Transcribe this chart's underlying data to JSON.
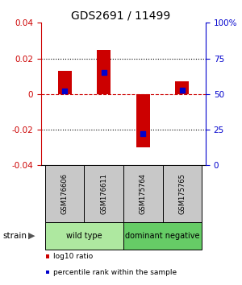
{
  "title": "GDS2691 / 11499",
  "samples": [
    "GSM176606",
    "GSM176611",
    "GSM175764",
    "GSM175765"
  ],
  "log10_ratios": [
    0.013,
    0.025,
    -0.03,
    0.007
  ],
  "percentile_ranks": [
    52,
    65,
    22,
    53
  ],
  "bar_color": "#CC0000",
  "dot_color": "#0000CC",
  "ylim": [
    -0.04,
    0.04
  ],
  "yticks_left": [
    -0.04,
    -0.02,
    0.0,
    0.02,
    0.04
  ],
  "yticks_right": [
    0,
    25,
    50,
    75,
    100
  ],
  "background_color": "#ffffff",
  "bar_width": 0.35,
  "dot_size": 22,
  "group_info": [
    {
      "label": "wild type",
      "color": "#aee8a0",
      "xstart": -0.5,
      "xend": 1.5
    },
    {
      "label": "dominant negative",
      "color": "#66cc66",
      "xstart": 1.5,
      "xend": 3.5
    }
  ],
  "legend_items": [
    {
      "color": "#CC0000",
      "label": "log10 ratio"
    },
    {
      "color": "#0000CC",
      "label": "percentile rank within the sample"
    }
  ]
}
